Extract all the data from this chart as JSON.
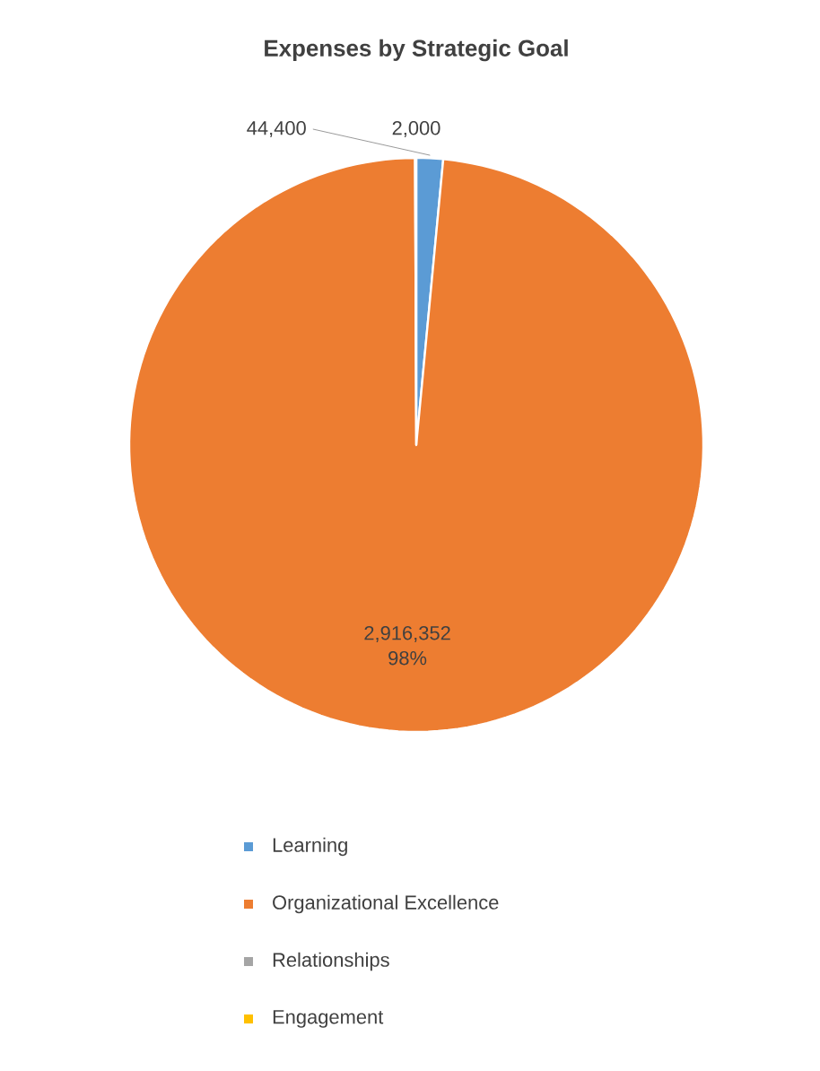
{
  "chart_data": {
    "type": "pie",
    "title": "Expenses by Strategic Goal",
    "categories": [
      "Learning",
      "Organizational Excellence",
      "Relationships",
      "Engagement"
    ],
    "values": [
      44400,
      2916352,
      2000,
      null
    ],
    "colors": [
      "#5b9bd5",
      "#ed7d31",
      "#a5a5a5",
      "#ffc000"
    ],
    "value_labels": [
      "44,400",
      "2,916,352",
      "2,000",
      null
    ],
    "annotations": [
      "98%"
    ],
    "legend": "bottom"
  }
}
